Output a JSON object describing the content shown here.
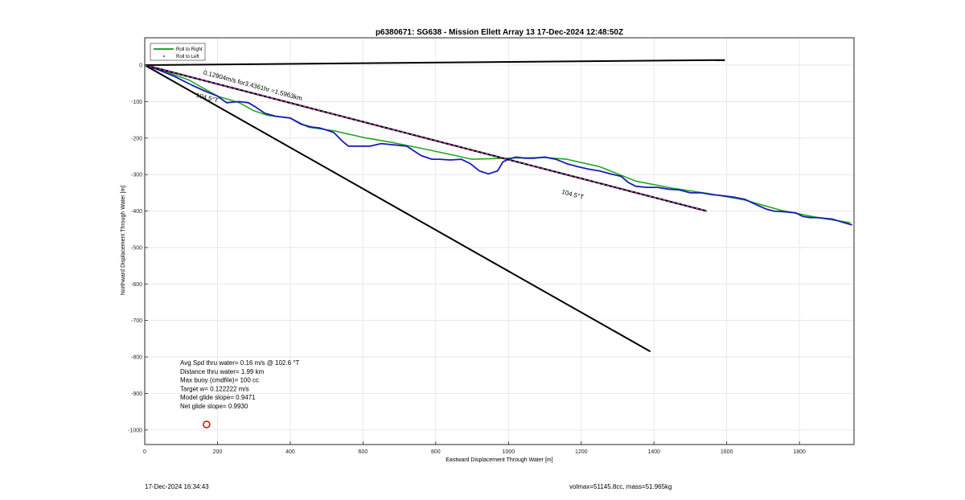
{
  "chart_data": {
    "type": "line",
    "title": "p6380671: SG638 - Mission Ellett Array 13 17-Dec-2024 12:48:50Z",
    "xlabel": "Eastward Displacement Through Water [m]",
    "ylabel": "Northward Displacement Through Water [m]",
    "xlim": [
      0,
      1950
    ],
    "ylim": [
      -1040,
      75
    ],
    "xticks": [
      0,
      200,
      400,
      600,
      800,
      1000,
      1200,
      1400,
      1600,
      1800
    ],
    "yticks": [
      0,
      -100,
      -200,
      -300,
      -400,
      -500,
      -600,
      -700,
      -800,
      -900,
      -1000
    ],
    "grid": true,
    "legend_position": "top-left",
    "legend": [
      {
        "name": "Roll to Right",
        "color": "#1faa1f",
        "style": "line"
      },
      {
        "name": "Roll to Left",
        "color": "#000000",
        "style": "dot"
      }
    ],
    "series": [
      {
        "name": "Roll to Right",
        "color": "#1faa1f",
        "x": [
          0,
          40,
          120,
          200,
          260,
          300,
          340,
          400,
          450,
          520,
          600,
          680,
          760,
          850,
          900,
          1000,
          1100,
          1160,
          1250,
          1350,
          1450,
          1550,
          1650,
          1750,
          1850,
          1940
        ],
        "y": [
          0,
          -12,
          -40,
          -85,
          -103,
          -125,
          -138,
          -145,
          -170,
          -180,
          -198,
          -212,
          -228,
          -247,
          -258,
          -255,
          -253,
          -258,
          -278,
          -318,
          -337,
          -352,
          -370,
          -398,
          -418,
          -432
        ]
      },
      {
        "name": "glider track",
        "color": "#1a1ab8",
        "x": [
          0,
          30,
          80,
          130,
          170,
          200,
          225,
          245,
          260,
          285,
          305,
          330,
          360,
          400,
          430,
          460,
          480,
          500,
          520,
          545,
          560,
          590,
          620,
          650,
          680,
          720,
          760,
          790,
          810,
          840,
          870,
          895,
          920,
          945,
          970,
          985,
          1000,
          1020,
          1045,
          1070,
          1100,
          1130,
          1160,
          1190,
          1220,
          1250,
          1280,
          1310,
          1330,
          1350,
          1380,
          1410,
          1440,
          1470,
          1500,
          1530,
          1560,
          1590,
          1620,
          1650,
          1680,
          1710,
          1730,
          1760,
          1790,
          1810,
          1830,
          1850,
          1870,
          1890,
          1910,
          1930,
          1945
        ],
        "y": [
          0,
          -10,
          -30,
          -55,
          -73,
          -85,
          -103,
          -101,
          -100,
          -103,
          -115,
          -132,
          -140,
          -145,
          -162,
          -170,
          -172,
          -178,
          -185,
          -210,
          -222,
          -222,
          -222,
          -215,
          -218,
          -222,
          -248,
          -258,
          -258,
          -260,
          -258,
          -270,
          -290,
          -298,
          -290,
          -265,
          -258,
          -252,
          -255,
          -255,
          -252,
          -258,
          -270,
          -278,
          -285,
          -290,
          -298,
          -305,
          -322,
          -332,
          -335,
          -335,
          -340,
          -342,
          -350,
          -350,
          -355,
          -358,
          -362,
          -368,
          -382,
          -395,
          -400,
          -402,
          -405,
          -415,
          -418,
          -418,
          -420,
          -422,
          -428,
          -434,
          -438
        ]
      },
      {
        "name": "northward line",
        "color": "#000000",
        "x": [
          0,
          1595
        ],
        "y": [
          0,
          14
        ]
      },
      {
        "name": "heading line",
        "color": "#000000",
        "x": [
          0,
          1390
        ],
        "y": [
          0,
          -785
        ]
      },
      {
        "name": "average track",
        "color": "#000000",
        "dash_color": "#e040e0",
        "x": [
          0,
          1545
        ],
        "y": [
          0,
          -400
        ]
      }
    ],
    "marker": {
      "x": 170,
      "y": -985,
      "color": "#dd1111"
    },
    "annotations": [
      {
        "text": "0.12904m/s for3.4361hr =1.5963km",
        "x": 160,
        "y": -25,
        "rotate": 15.0
      },
      {
        "text": "104.5°T",
        "x": 140,
        "y": -87,
        "rotate": 15.0
      },
      {
        "text": "104.5°T",
        "x": 1145,
        "y": -352,
        "rotate": 15.0
      }
    ],
    "stats": [
      "Avg Spd thru water=  0.16 m/s @ 102.6 °T",
      "Distance thru water=  1.99 km",
      "Max buoy (cmdfile)= 100 cc",
      "Target w= 0.122222 m/s",
      "Model glide slope= 0.9471",
      "Net glide slope= 0.9930"
    ]
  },
  "footer": {
    "left": "17-Dec-2024 16:34:43",
    "right": "volmax=51145.8cc, mass=51.965kg"
  }
}
